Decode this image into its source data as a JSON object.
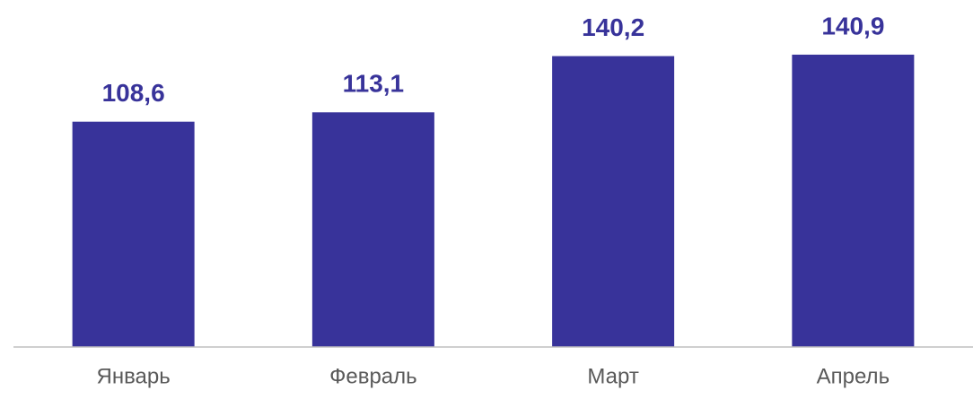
{
  "chart_data": {
    "type": "bar",
    "categories": [
      "Январь",
      "Февраль",
      "Март",
      "Апрель"
    ],
    "values": [
      108.6,
      113.1,
      140.2,
      140.9
    ],
    "value_labels": [
      "108,6",
      "113,1",
      "140,2",
      "140,9"
    ],
    "color": "#38339a"
  }
}
